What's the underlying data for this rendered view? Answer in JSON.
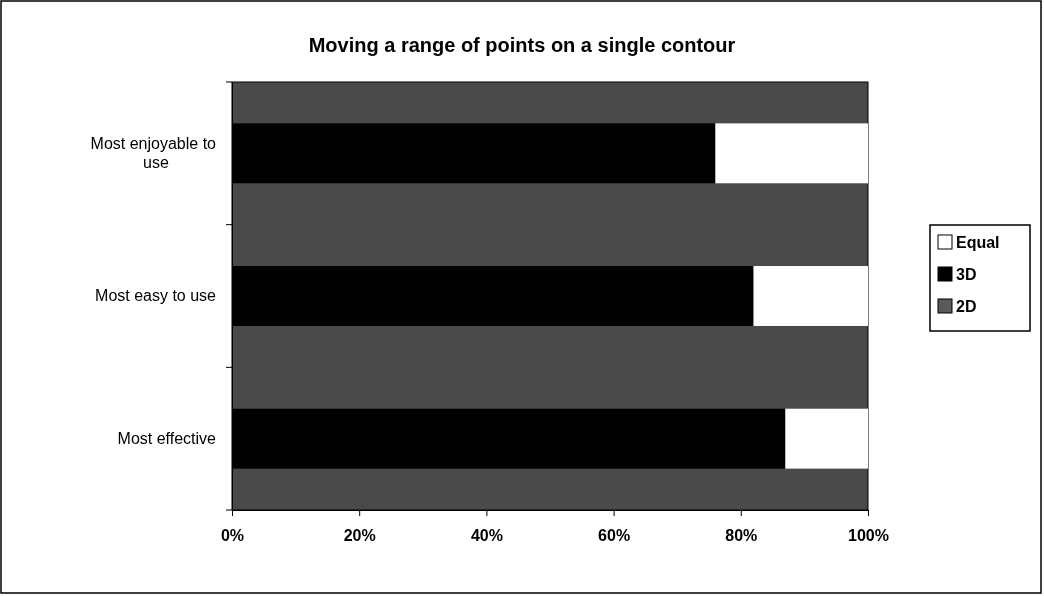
{
  "chart_data": {
    "type": "bar",
    "orientation": "horizontal",
    "stacked": true,
    "title": "Moving a range of points on a single contour",
    "categories": [
      "Most enjoyable to use",
      "Most easy to use",
      "Most effective"
    ],
    "series": [
      {
        "name": "2D",
        "color": "#5a5a5a",
        "values": [
          0,
          0,
          0
        ]
      },
      {
        "name": "3D",
        "color": "#000000",
        "values": [
          76,
          82,
          87
        ]
      },
      {
        "name": "Equal",
        "color": "#ffffff",
        "values": [
          24,
          18,
          13
        ]
      }
    ],
    "xlim": [
      0,
      100
    ],
    "xticks": [
      {
        "value": 0,
        "label": "0%"
      },
      {
        "value": 20,
        "label": "20%"
      },
      {
        "value": 40,
        "label": "40%"
      },
      {
        "value": 60,
        "label": "60%"
      },
      {
        "value": 80,
        "label": "80%"
      },
      {
        "value": 100,
        "label": "100%"
      }
    ],
    "legend": "right"
  }
}
